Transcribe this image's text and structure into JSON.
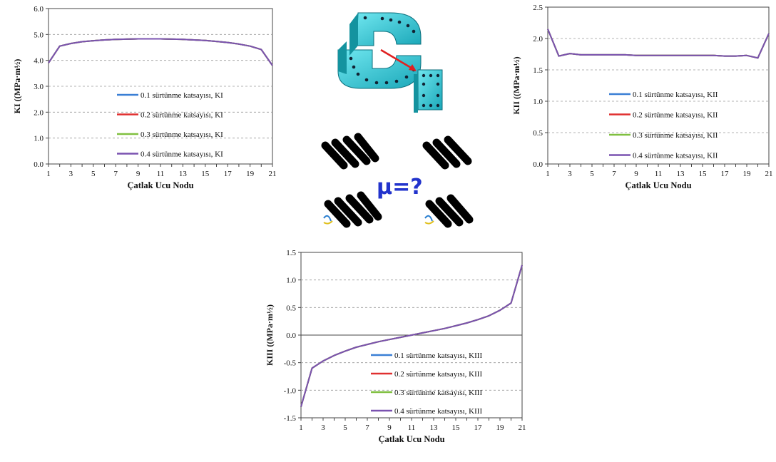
{
  "center": {
    "mu_label": "μ=?"
  },
  "colors": {
    "s1": "#3a7fd5",
    "s2": "#e03030",
    "s3": "#80c040",
    "s4": "#7a52b0",
    "grid": "#9a9a9a",
    "axis": "#444444"
  },
  "chart_data": [
    {
      "id": "ki",
      "type": "line",
      "xlabel": "Çatlak Ucu Nodu",
      "ylabel": "KI ((MPa·m½)",
      "ylim": [
        0,
        6
      ],
      "yticks": [
        "0.0",
        "1.0",
        "2.0",
        "3.0",
        "4.0",
        "5.0",
        "6.0"
      ],
      "xticks": [
        "1",
        "3",
        "5",
        "7",
        "9",
        "11",
        "13",
        "15",
        "17",
        "19",
        "21"
      ],
      "grid": "horizontal dashed",
      "legend_position": "lower-center",
      "x": [
        1,
        2,
        3,
        4,
        5,
        6,
        7,
        8,
        9,
        10,
        11,
        12,
        13,
        14,
        15,
        16,
        17,
        18,
        19,
        20,
        21
      ],
      "series": [
        {
          "name": "0.1 sürtünme katsayısı, KI",
          "values": [
            3.9,
            4.55,
            4.65,
            4.72,
            4.76,
            4.79,
            4.81,
            4.82,
            4.83,
            4.83,
            4.83,
            4.82,
            4.81,
            4.79,
            4.77,
            4.73,
            4.69,
            4.63,
            4.55,
            4.42,
            3.8
          ]
        },
        {
          "name": "0.2 sürtünme katsayısı, KI",
          "values": [
            3.9,
            4.55,
            4.65,
            4.72,
            4.76,
            4.79,
            4.81,
            4.82,
            4.83,
            4.83,
            4.83,
            4.82,
            4.81,
            4.79,
            4.77,
            4.73,
            4.69,
            4.63,
            4.55,
            4.42,
            3.8
          ]
        },
        {
          "name": "0.3 sürtünme katsayısı, KI",
          "values": [
            3.9,
            4.55,
            4.65,
            4.72,
            4.76,
            4.79,
            4.81,
            4.82,
            4.83,
            4.83,
            4.83,
            4.82,
            4.81,
            4.79,
            4.77,
            4.73,
            4.69,
            4.63,
            4.55,
            4.42,
            3.8
          ]
        },
        {
          "name": "0.4 sürtünme katsayısı, KI",
          "values": [
            3.9,
            4.55,
            4.65,
            4.72,
            4.76,
            4.79,
            4.81,
            4.82,
            4.83,
            4.83,
            4.83,
            4.82,
            4.81,
            4.79,
            4.77,
            4.73,
            4.69,
            4.63,
            4.55,
            4.42,
            3.8
          ]
        }
      ]
    },
    {
      "id": "kii",
      "type": "line",
      "xlabel": "Çatlak Ucu Nodu",
      "ylabel": "KII ((MPa·m½)",
      "ylim": [
        0,
        2.5
      ],
      "yticks": [
        "0.0",
        "0.5",
        "1.0",
        "1.5",
        "2.0",
        "2.5"
      ],
      "xticks": [
        "1",
        "3",
        "5",
        "7",
        "9",
        "11",
        "13",
        "15",
        "17",
        "19",
        "21"
      ],
      "grid": "horizontal dashed",
      "legend_position": "lower-center",
      "x": [
        1,
        2,
        3,
        4,
        5,
        6,
        7,
        8,
        9,
        10,
        11,
        12,
        13,
        14,
        15,
        16,
        17,
        18,
        19,
        20,
        21
      ],
      "series": [
        {
          "name": "0.1 sürtünme katsayısı, KII",
          "values": [
            2.15,
            1.72,
            1.76,
            1.74,
            1.74,
            1.74,
            1.74,
            1.74,
            1.73,
            1.73,
            1.73,
            1.73,
            1.73,
            1.73,
            1.73,
            1.73,
            1.72,
            1.72,
            1.73,
            1.69,
            2.08
          ]
        },
        {
          "name": "0.2 sürtünme katsayısı, KII",
          "values": [
            2.15,
            1.72,
            1.76,
            1.74,
            1.74,
            1.74,
            1.74,
            1.74,
            1.73,
            1.73,
            1.73,
            1.73,
            1.73,
            1.73,
            1.73,
            1.73,
            1.72,
            1.72,
            1.73,
            1.69,
            2.08
          ]
        },
        {
          "name": "0.3 sürtünme katsayısı, KII",
          "values": [
            2.15,
            1.72,
            1.76,
            1.74,
            1.74,
            1.74,
            1.74,
            1.74,
            1.73,
            1.73,
            1.73,
            1.73,
            1.73,
            1.73,
            1.73,
            1.73,
            1.72,
            1.72,
            1.73,
            1.69,
            2.08
          ]
        },
        {
          "name": "0.4 sürtünme katsayısı, KII",
          "values": [
            2.15,
            1.72,
            1.76,
            1.74,
            1.74,
            1.74,
            1.74,
            1.74,
            1.73,
            1.73,
            1.73,
            1.73,
            1.73,
            1.73,
            1.73,
            1.73,
            1.72,
            1.72,
            1.73,
            1.69,
            2.08
          ]
        }
      ]
    },
    {
      "id": "kiii",
      "type": "line",
      "xlabel": "Çatlak Ucu Nodu",
      "ylabel": "KIII ((MPa·m½)",
      "ylim": [
        -1.5,
        1.5
      ],
      "yticks": [
        "-1.5",
        "-1.0",
        "-0.5",
        "0.0",
        "0.5",
        "1.0",
        "1.5"
      ],
      "xticks": [
        "1",
        "3",
        "5",
        "7",
        "9",
        "11",
        "13",
        "15",
        "17",
        "19",
        "21"
      ],
      "grid": "horizontal dashed",
      "legend_position": "lower-center",
      "x": [
        1,
        2,
        3,
        4,
        5,
        6,
        7,
        8,
        9,
        10,
        11,
        12,
        13,
        14,
        15,
        16,
        17,
        18,
        19,
        20,
        21
      ],
      "series": [
        {
          "name": "0.1 sürtünme katsayısı, KIII",
          "values": [
            -1.3,
            -0.6,
            -0.47,
            -0.37,
            -0.29,
            -0.22,
            -0.17,
            -0.12,
            -0.08,
            -0.04,
            0.0,
            0.04,
            0.08,
            0.12,
            0.17,
            0.22,
            0.28,
            0.35,
            0.45,
            0.58,
            1.27
          ]
        },
        {
          "name": "0.2 sürtünme katsayısı, KIII",
          "values": [
            -1.3,
            -0.6,
            -0.47,
            -0.37,
            -0.29,
            -0.22,
            -0.17,
            -0.12,
            -0.08,
            -0.04,
            0.0,
            0.04,
            0.08,
            0.12,
            0.17,
            0.22,
            0.28,
            0.35,
            0.45,
            0.58,
            1.27
          ]
        },
        {
          "name": "0.3 sürtünme katsayısı, KIII",
          "values": [
            -1.3,
            -0.6,
            -0.47,
            -0.37,
            -0.29,
            -0.22,
            -0.17,
            -0.12,
            -0.08,
            -0.04,
            0.0,
            0.04,
            0.08,
            0.12,
            0.17,
            0.22,
            0.28,
            0.35,
            0.45,
            0.58,
            1.27
          ]
        },
        {
          "name": "0.4 sürtünme katsayısı, KIII",
          "values": [
            -1.3,
            -0.6,
            -0.47,
            -0.37,
            -0.29,
            -0.22,
            -0.17,
            -0.12,
            -0.08,
            -0.04,
            0.0,
            0.04,
            0.08,
            0.12,
            0.17,
            0.22,
            0.28,
            0.35,
            0.45,
            0.58,
            1.27
          ]
        }
      ]
    }
  ]
}
